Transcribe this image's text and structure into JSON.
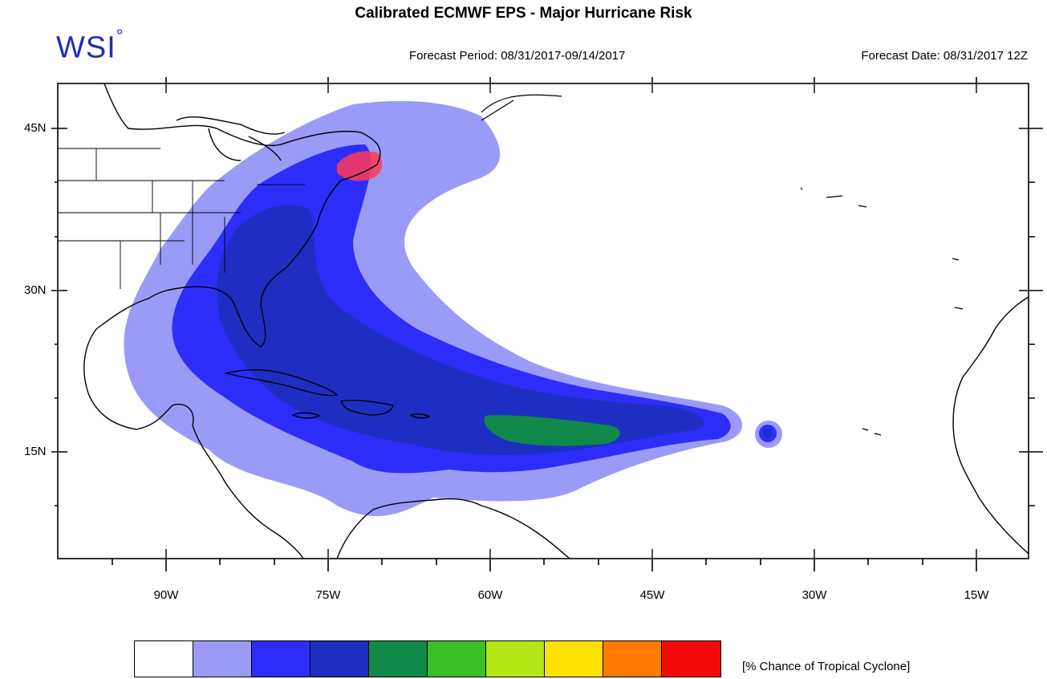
{
  "title": "Calibrated ECMWF EPS - Major Hurricane Risk",
  "logo": {
    "text": "WSI",
    "mark": "°"
  },
  "forecast_period": "Forecast Period: 08/31/2017-09/14/2017",
  "forecast_date": "Forecast Date: 08/31/2017 12Z",
  "map": {
    "y_axis_labels": [
      "45N",
      "30N",
      "15N"
    ],
    "x_axis_labels": [
      "90W",
      "75W",
      "60W",
      "45W",
      "30W",
      "15W"
    ]
  },
  "legend": {
    "label": "[% Chance of Tropical Cyclone]",
    "colors": [
      "#ffffff",
      "#9a9bf7",
      "#2d2dfa",
      "#1d2fc2",
      "#10894a",
      "#3cbe26",
      "#b4e617",
      "#ffe100",
      "#ff7a00",
      "#f50a0a"
    ]
  }
}
